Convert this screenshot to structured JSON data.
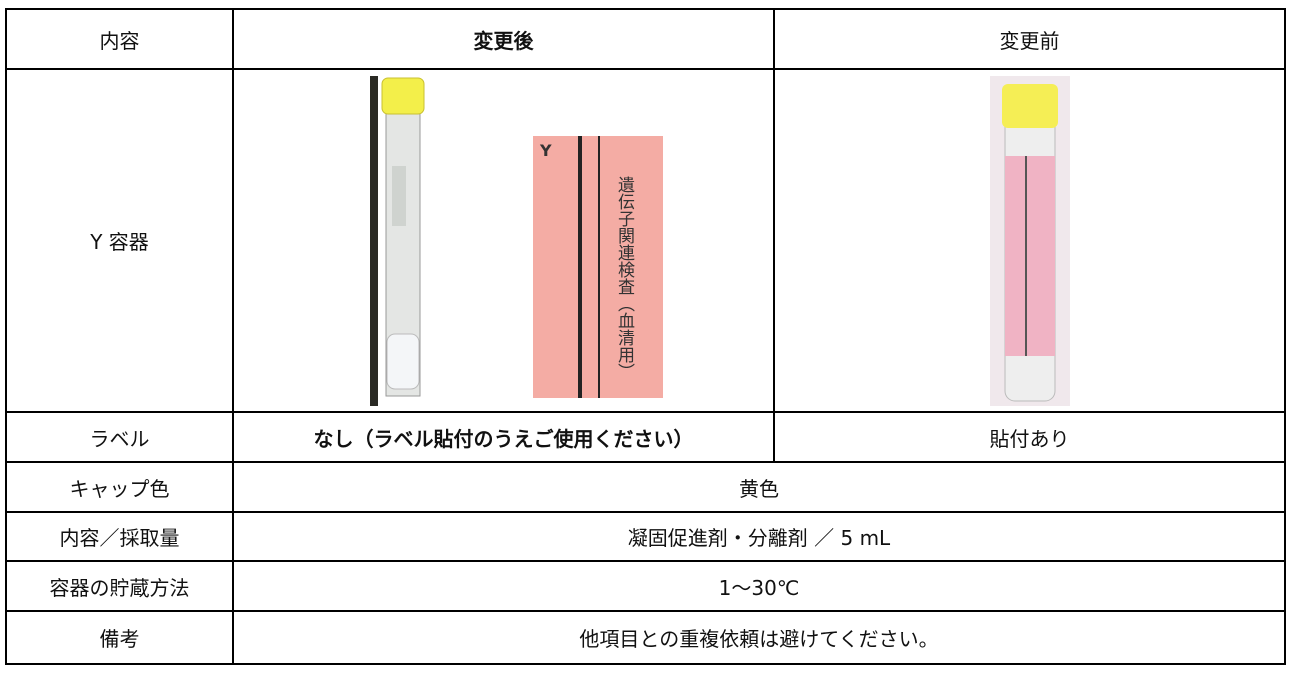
{
  "table": {
    "header": [
      "内容",
      "変更後",
      "変更前"
    ],
    "rows": [
      [
        "Y 容器"
      ],
      [
        "ラベル",
        "なし（ラベル貼付のうえご使用ください）",
        "貼付あり"
      ],
      [
        "キャップ色",
        "黄色"
      ],
      [
        "内容／採取量",
        "凝固促進剤・分離剤 ／ 5 mL"
      ],
      [
        "容器の貯蔵方法",
        "1～30℃"
      ],
      [
        "備考",
        "他項目との重複依頼は避けてください。"
      ]
    ]
  },
  "label_image": {
    "code": "Y",
    "text": "遺伝子関連検査（血清用）"
  }
}
